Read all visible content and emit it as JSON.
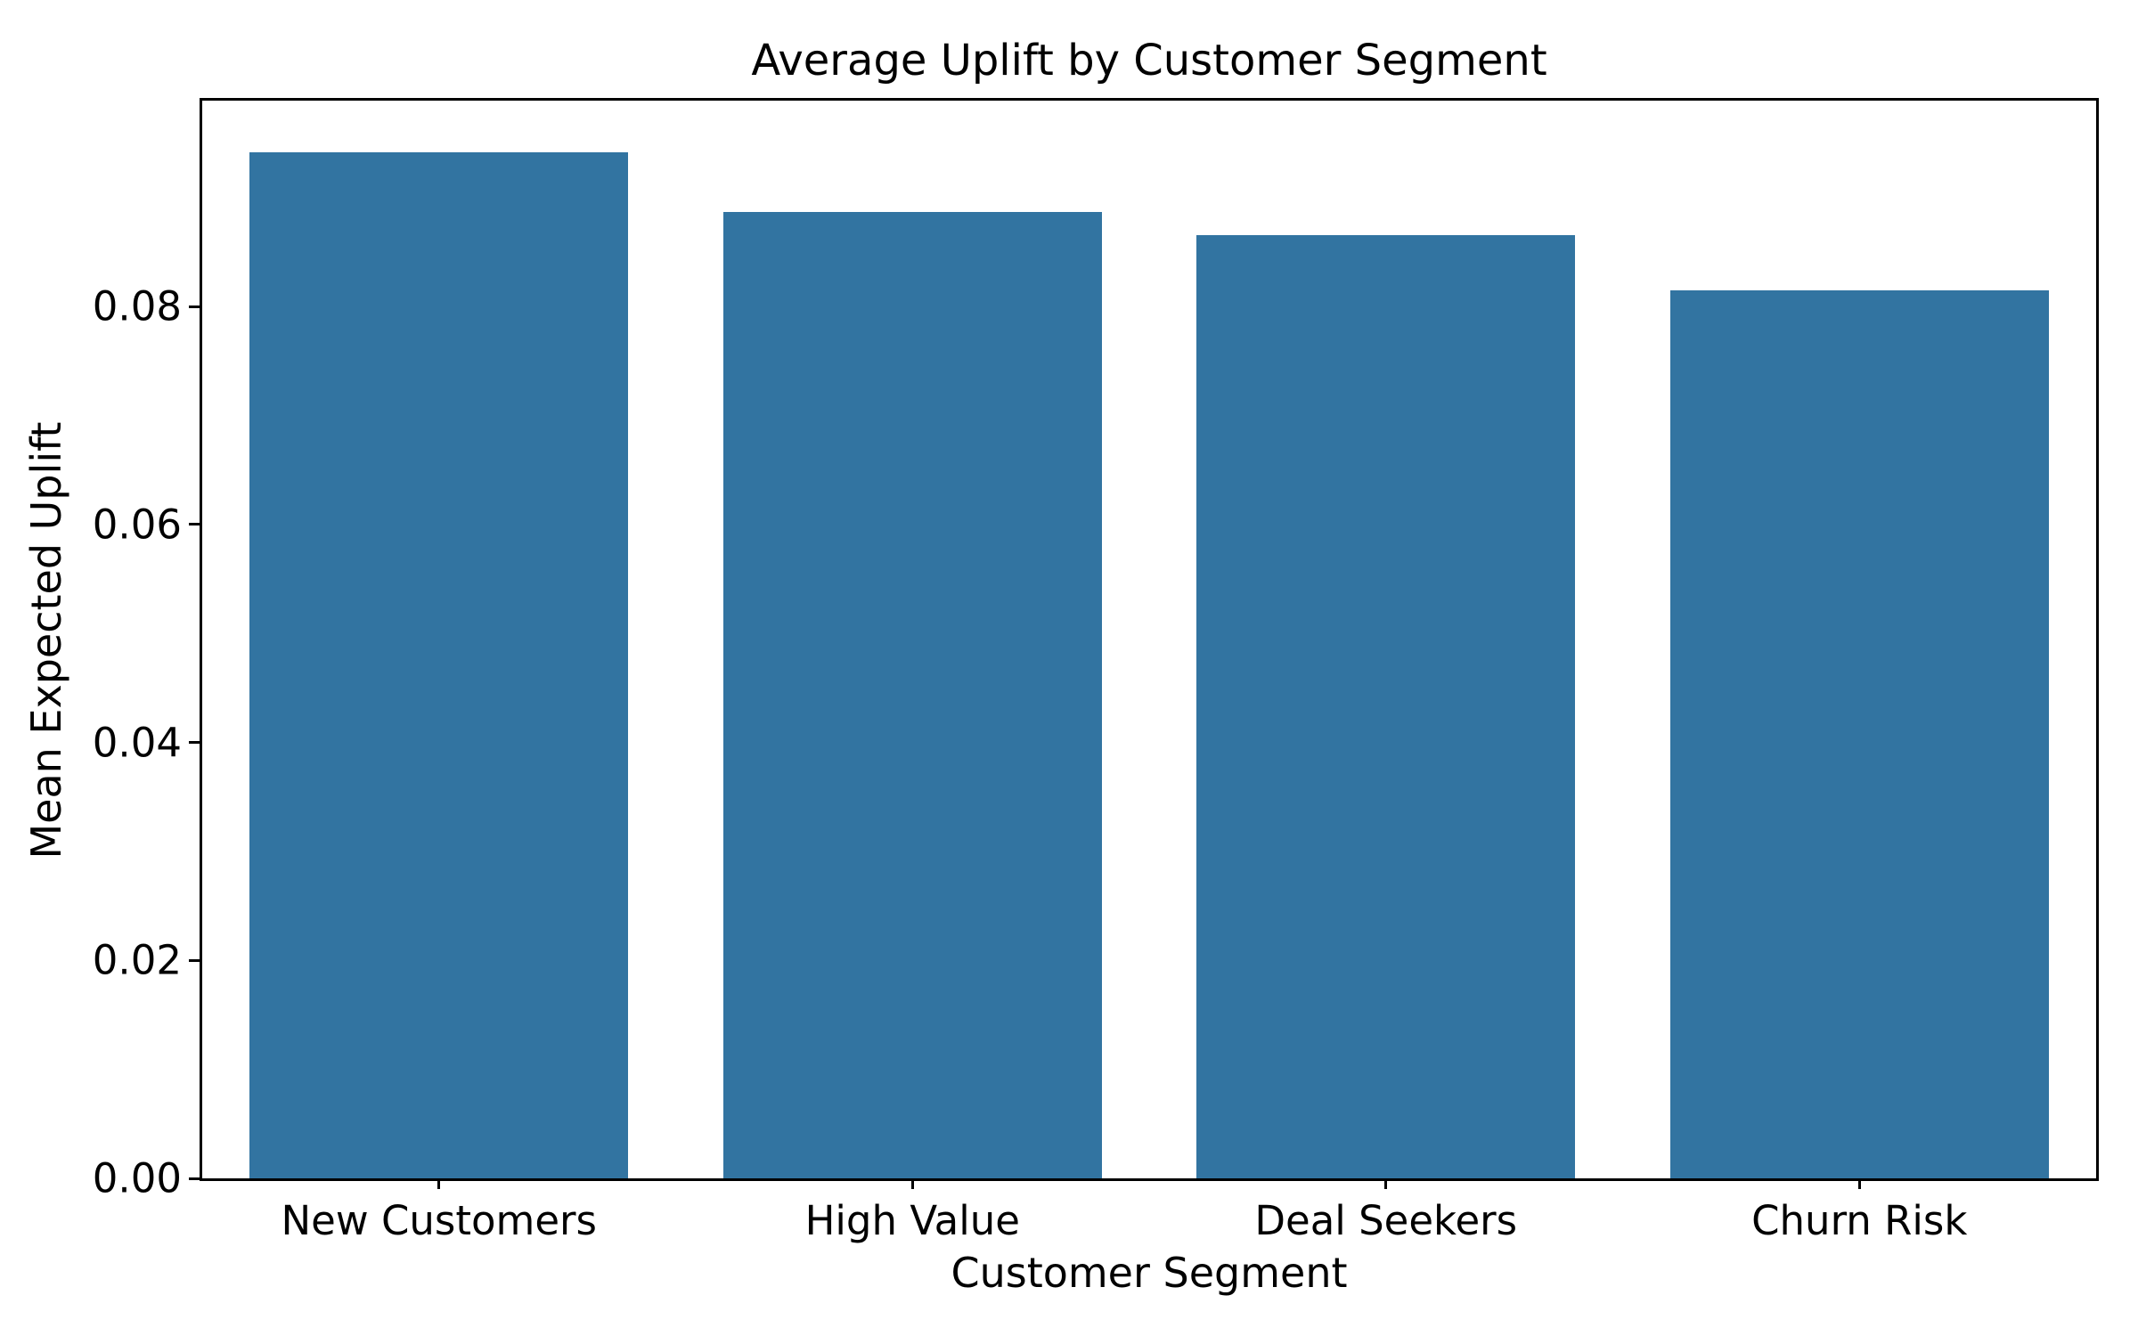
{
  "chart_data": {
    "type": "bar",
    "title": "Average Uplift by Customer Segment",
    "xlabel": "Customer Segment",
    "ylabel": "Mean Expected Uplift",
    "categories": [
      "New Customers",
      "High Value",
      "Deal Seekers",
      "Churn Risk"
    ],
    "values": [
      0.0942,
      0.0887,
      0.0866,
      0.0815
    ],
    "ylim": [
      0,
      0.0989
    ],
    "yticks": [
      0.0,
      0.02,
      0.04,
      0.06,
      0.08
    ],
    "ytick_labels": [
      "0.00",
      "0.02",
      "0.04",
      "0.06",
      "0.08"
    ],
    "bar_width_fraction": 0.8,
    "bar_color": "#3274A1",
    "axis_color": "#000000",
    "text_color": "#000000",
    "background_color": "#ffffff",
    "grid": false,
    "legend": null
  }
}
